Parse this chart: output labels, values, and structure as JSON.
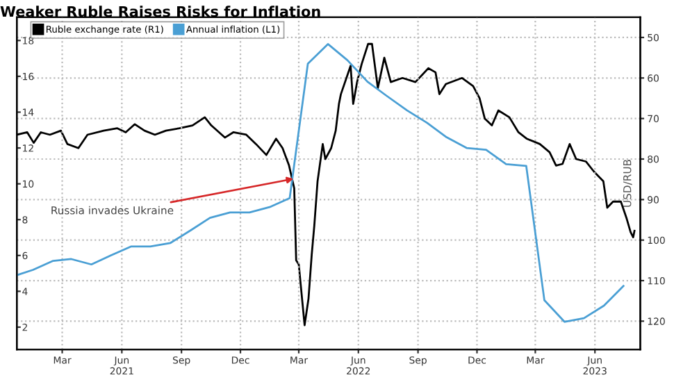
{
  "chart_data": {
    "type": "line",
    "title": "Weaker Ruble Raises Risks for Inflation",
    "y2label": "USD/RUB",
    "xlim": [
      "2020-12-21",
      "2023-08-10"
    ],
    "xticks": [
      {
        "value": "2021-03-01",
        "label": "Mar"
      },
      {
        "value": "2021-06-01",
        "label": "Jun\n2021"
      },
      {
        "value": "2021-09-01",
        "label": "Sep"
      },
      {
        "value": "2021-12-01",
        "label": "Dec"
      },
      {
        "value": "2022-03-01",
        "label": "Mar"
      },
      {
        "value": "2022-06-01",
        "label": "Jun\n2022"
      },
      {
        "value": "2022-09-01",
        "label": "Sep"
      },
      {
        "value": "2022-12-01",
        "label": "Dec"
      },
      {
        "value": "2023-03-01",
        "label": "Mar"
      },
      {
        "value": "2023-06-01",
        "label": "Jun\n2023"
      }
    ],
    "ylim": [
      0.75,
      19.3
    ],
    "yticks": [
      2,
      4,
      6,
      8,
      10,
      12,
      14,
      16,
      18
    ],
    "y2lim": [
      127,
      45
    ],
    "y2ticks": [
      50,
      60,
      70,
      80,
      90,
      100,
      110,
      120
    ],
    "grid": true,
    "legend": "top left",
    "annotations": [
      {
        "text": "Russia invades Ukraine",
        "x": "2022-02-24",
        "y": 10.3
      }
    ],
    "series": [
      {
        "name": "Ruble exchange rate (R1)",
        "color": "#000000",
        "axis": "y2",
        "x": [
          "2020-12-21",
          "2021-01-06",
          "2021-01-16",
          "2021-01-27",
          "2021-02-10",
          "2021-02-27",
          "2021-03-09",
          "2021-03-26",
          "2021-04-09",
          "2021-05-04",
          "2021-05-25",
          "2021-06-07",
          "2021-06-21",
          "2021-07-06",
          "2021-07-22",
          "2021-08-08",
          "2021-08-29",
          "2021-09-18",
          "2021-10-07",
          "2021-10-17",
          "2021-11-07",
          "2021-11-20",
          "2021-12-10",
          "2021-12-25",
          "2022-01-10",
          "2022-01-25",
          "2022-02-04",
          "2022-02-14",
          "2022-02-22",
          "2022-02-25",
          "2022-03-01",
          "2022-03-10",
          "2022-03-16",
          "2022-03-21",
          "2022-03-25",
          "2022-03-30",
          "2022-04-07",
          "2022-04-11",
          "2022-04-20",
          "2022-04-27",
          "2022-05-02",
          "2022-05-05",
          "2022-05-20",
          "2022-05-24",
          "2022-05-30",
          "2022-06-06",
          "2022-06-16",
          "2022-06-22",
          "2022-07-01",
          "2022-07-11",
          "2022-07-21",
          "2022-08-08",
          "2022-08-28",
          "2022-09-17",
          "2022-09-28",
          "2022-10-04",
          "2022-10-14",
          "2022-11-08",
          "2022-11-25",
          "2022-12-05",
          "2022-12-13",
          "2022-12-24",
          "2023-01-03",
          "2023-01-20",
          "2023-02-03",
          "2023-02-16",
          "2023-03-08",
          "2023-03-23",
          "2023-04-02",
          "2023-04-12",
          "2023-04-23",
          "2023-05-03",
          "2023-05-18",
          "2023-05-30",
          "2023-06-14",
          "2023-06-20",
          "2023-06-29",
          "2023-07-11",
          "2023-07-20",
          "2023-07-26",
          "2023-07-30",
          "2023-08-01"
        ],
        "values": [
          74,
          73.4,
          76,
          73.4,
          74,
          73,
          76.3,
          77.3,
          74,
          73,
          72.4,
          73.4,
          71.4,
          73,
          74,
          73,
          72.4,
          71.7,
          69.7,
          71.7,
          74.7,
          73.4,
          74,
          76.3,
          79,
          75,
          77.3,
          81.6,
          87.2,
          105,
          106,
          121,
          114.5,
          103.6,
          96.4,
          85.5,
          76.3,
          80,
          77.3,
          73,
          66.4,
          64,
          57,
          66.4,
          61,
          56.6,
          51.6,
          51.6,
          62.5,
          55,
          61,
          60,
          61,
          57.6,
          58.6,
          64,
          61.5,
          60,
          62,
          65,
          70,
          71.7,
          68,
          69.7,
          73.4,
          75,
          76.3,
          78.3,
          81.6,
          81.2,
          76.3,
          80,
          80.6,
          83,
          85.5,
          92,
          90.5,
          90.5,
          94.7,
          98,
          99.3,
          97.7
        ]
      },
      {
        "name": "Annual inflation (L1)",
        "color": "#4a9fd4",
        "x": [
          "2020-12-21",
          "2021-01-15",
          "2021-02-15",
          "2021-03-15",
          "2021-04-15",
          "2021-05-15",
          "2021-06-15",
          "2021-07-15",
          "2021-08-15",
          "2021-09-15",
          "2021-10-15",
          "2021-11-15",
          "2021-12-15",
          "2022-01-15",
          "2022-02-15",
          "2022-03-15",
          "2022-04-15",
          "2022-05-15",
          "2022-06-15",
          "2022-07-15",
          "2022-08-15",
          "2022-09-15",
          "2022-10-15",
          "2022-11-15",
          "2022-12-15",
          "2023-01-15",
          "2023-02-15",
          "2023-03-15",
          "2023-04-15",
          "2023-05-15",
          "2023-06-15",
          "2023-07-15"
        ],
        "values": [
          4.9,
          5.2,
          5.7,
          5.8,
          5.5,
          6.0,
          6.5,
          6.5,
          6.7,
          7.4,
          8.1,
          8.4,
          8.4,
          8.7,
          9.2,
          16.7,
          17.8,
          16.9,
          15.7,
          14.9,
          14.1,
          13.4,
          12.6,
          12.0,
          11.9,
          11.1,
          11.0,
          3.5,
          2.3,
          2.5,
          3.2,
          4.3
        ]
      }
    ]
  }
}
